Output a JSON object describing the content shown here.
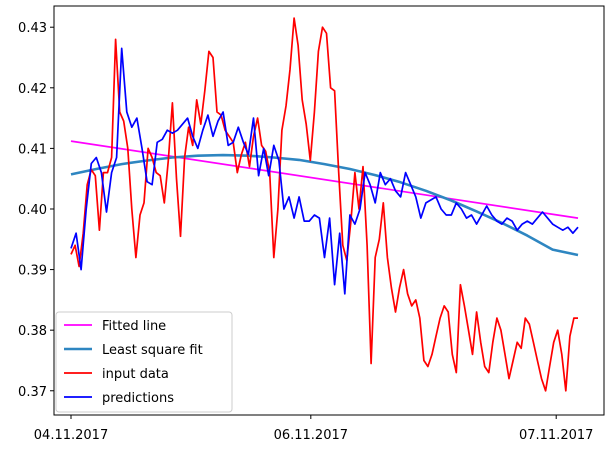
{
  "chart_data": {
    "type": "line",
    "title": "",
    "xlabel": "",
    "ylabel": "",
    "xlim": [
      "04.11.2017",
      "07.11.2017"
    ],
    "ylim": [
      0.366,
      0.4335
    ],
    "x_ticks": [
      "04.11.2017",
      "06.11.2017",
      "07.11.2017"
    ],
    "y_ticks": [
      "0.37",
      "0.38",
      "0.39",
      "0.40",
      "0.41",
      "0.42",
      "0.43"
    ],
    "grid": false,
    "legend_position": "bottom-left",
    "series": [
      {
        "name": "Fitted line",
        "color": "#ff00ff",
        "x": [
          0,
          1
        ],
        "values": [
          0.4112,
          0.3985
        ]
      },
      {
        "name": "Least square fit",
        "color": "#2e86c1",
        "x": [
          0,
          0.05,
          0.1,
          0.15,
          0.2,
          0.25,
          0.3,
          0.35,
          0.4,
          0.45,
          0.5,
          0.55,
          0.6,
          0.65,
          0.7,
          0.75,
          0.8,
          0.85,
          0.9,
          0.95,
          1
        ],
        "values": [
          0.4057,
          0.4066,
          0.4074,
          0.408,
          0.4085,
          0.4088,
          0.4089,
          0.4088,
          0.4085,
          0.4081,
          0.4074,
          0.4066,
          0.4056,
          0.4044,
          0.403,
          0.4014,
          0.3996,
          0.3977,
          0.3956,
          0.3933,
          0.3924
        ]
      },
      {
        "name": "input data",
        "color": "#ff0000",
        "x": [
          0.0,
          0.008,
          0.016,
          0.024,
          0.032,
          0.04,
          0.048,
          0.056,
          0.064,
          0.072,
          0.08,
          0.088,
          0.096,
          0.104,
          0.112,
          0.12,
          0.128,
          0.136,
          0.144,
          0.152,
          0.16,
          0.168,
          0.176,
          0.184,
          0.192,
          0.2,
          0.208,
          0.216,
          0.224,
          0.232,
          0.24,
          0.248,
          0.256,
          0.264,
          0.272,
          0.28,
          0.288,
          0.296,
          0.304,
          0.312,
          0.32,
          0.328,
          0.336,
          0.344,
          0.352,
          0.36,
          0.368,
          0.376,
          0.384,
          0.392,
          0.4,
          0.408,
          0.416,
          0.424,
          0.432,
          0.44,
          0.448,
          0.456,
          0.464,
          0.472,
          0.48,
          0.488,
          0.496,
          0.504,
          0.512,
          0.52,
          0.528,
          0.536,
          0.544,
          0.552,
          0.56,
          0.568,
          0.576,
          0.584,
          0.592,
          0.6,
          0.608,
          0.616,
          0.624,
          0.632,
          0.64,
          0.648,
          0.656,
          0.664,
          0.672,
          0.68,
          0.688,
          0.696,
          0.704,
          0.712,
          0.72,
          0.728,
          0.736,
          0.744,
          0.752,
          0.76,
          0.768,
          0.776,
          0.784,
          0.792,
          0.8,
          0.808,
          0.816,
          0.824,
          0.832,
          0.84,
          0.848,
          0.856,
          0.864,
          0.872,
          0.88,
          0.888,
          0.896,
          0.904,
          0.912,
          0.92,
          0.928,
          0.936,
          0.944,
          0.952,
          0.96,
          0.968,
          0.976,
          0.984,
          0.992,
          1.0
        ],
        "values": [
          0.3925,
          0.394,
          0.3905,
          0.396,
          0.404,
          0.4065,
          0.4055,
          0.3965,
          0.406,
          0.406,
          0.4085,
          0.428,
          0.416,
          0.4145,
          0.41,
          0.4,
          0.392,
          0.399,
          0.401,
          0.41,
          0.4085,
          0.406,
          0.4055,
          0.401,
          0.408,
          0.4175,
          0.405,
          0.3955,
          0.4085,
          0.4135,
          0.4105,
          0.418,
          0.414,
          0.4195,
          0.426,
          0.425,
          0.416,
          0.4155,
          0.413,
          0.412,
          0.411,
          0.406,
          0.409,
          0.411,
          0.407,
          0.412,
          0.415,
          0.4105,
          0.4095,
          0.406,
          0.392,
          0.4,
          0.413,
          0.417,
          0.423,
          0.4315,
          0.427,
          0.418,
          0.414,
          0.408,
          0.416,
          0.426,
          0.43,
          0.429,
          0.42,
          0.4195,
          0.406,
          0.394,
          0.3915,
          0.398,
          0.406,
          0.4,
          0.407,
          0.394,
          0.3745,
          0.392,
          0.395,
          0.401,
          0.392,
          0.387,
          0.383,
          0.387,
          0.39,
          0.386,
          0.384,
          0.385,
          0.382,
          0.375,
          0.374,
          0.376,
          0.379,
          0.382,
          0.384,
          0.383,
          0.376,
          0.373,
          0.3875,
          0.384,
          0.38,
          0.376,
          0.383,
          0.378,
          0.374,
          0.373,
          0.378,
          0.382,
          0.38,
          0.376,
          0.372,
          0.375,
          0.378,
          0.377,
          0.382,
          0.381,
          0.378,
          0.375,
          0.372,
          0.37,
          0.374,
          0.378,
          0.38,
          0.376,
          0.37,
          0.379,
          0.382,
          0.382
        ]
      },
      {
        "name": "predictions",
        "color": "#0000ff",
        "x": [
          0.0,
          0.01,
          0.02,
          0.03,
          0.04,
          0.05,
          0.06,
          0.07,
          0.08,
          0.09,
          0.1,
          0.11,
          0.12,
          0.13,
          0.14,
          0.15,
          0.16,
          0.17,
          0.18,
          0.19,
          0.2,
          0.21,
          0.22,
          0.23,
          0.24,
          0.25,
          0.26,
          0.27,
          0.28,
          0.29,
          0.3,
          0.31,
          0.32,
          0.33,
          0.34,
          0.35,
          0.36,
          0.37,
          0.38,
          0.39,
          0.4,
          0.41,
          0.42,
          0.43,
          0.44,
          0.45,
          0.46,
          0.47,
          0.48,
          0.49,
          0.5,
          0.51,
          0.52,
          0.53,
          0.54,
          0.55,
          0.56,
          0.57,
          0.58,
          0.59,
          0.6,
          0.61,
          0.62,
          0.63,
          0.64,
          0.65,
          0.66,
          0.67,
          0.68,
          0.69,
          0.7,
          0.71,
          0.72,
          0.73,
          0.74,
          0.75,
          0.76,
          0.77,
          0.78,
          0.79,
          0.8,
          0.81,
          0.82,
          0.83,
          0.84,
          0.85,
          0.86,
          0.87,
          0.88,
          0.89,
          0.9,
          0.91,
          0.92,
          0.93,
          0.94,
          0.95,
          0.96,
          0.97,
          0.98,
          0.99,
          1.0
        ],
        "values": [
          0.3935,
          0.396,
          0.39,
          0.4,
          0.4075,
          0.4085,
          0.406,
          0.3995,
          0.406,
          0.4085,
          0.4265,
          0.416,
          0.4135,
          0.415,
          0.41,
          0.4045,
          0.404,
          0.411,
          0.4115,
          0.413,
          0.4125,
          0.413,
          0.414,
          0.415,
          0.412,
          0.41,
          0.413,
          0.4155,
          0.412,
          0.4145,
          0.416,
          0.4105,
          0.411,
          0.4135,
          0.411,
          0.409,
          0.415,
          0.4055,
          0.41,
          0.4055,
          0.4105,
          0.408,
          0.4,
          0.402,
          0.3985,
          0.402,
          0.398,
          0.398,
          0.399,
          0.3985,
          0.392,
          0.3985,
          0.3875,
          0.396,
          0.386,
          0.399,
          0.3975,
          0.4,
          0.406,
          0.404,
          0.401,
          0.406,
          0.404,
          0.405,
          0.403,
          0.402,
          0.406,
          0.404,
          0.402,
          0.3985,
          0.401,
          0.4015,
          0.402,
          0.4,
          0.399,
          0.399,
          0.401,
          0.4,
          0.3985,
          0.399,
          0.3975,
          0.399,
          0.4005,
          0.399,
          0.398,
          0.3975,
          0.3985,
          0.398,
          0.3965,
          0.3975,
          0.398,
          0.3975,
          0.3985,
          0.3995,
          0.3985,
          0.3975,
          0.397,
          0.3965,
          0.397,
          0.396,
          0.397
        ]
      }
    ]
  }
}
